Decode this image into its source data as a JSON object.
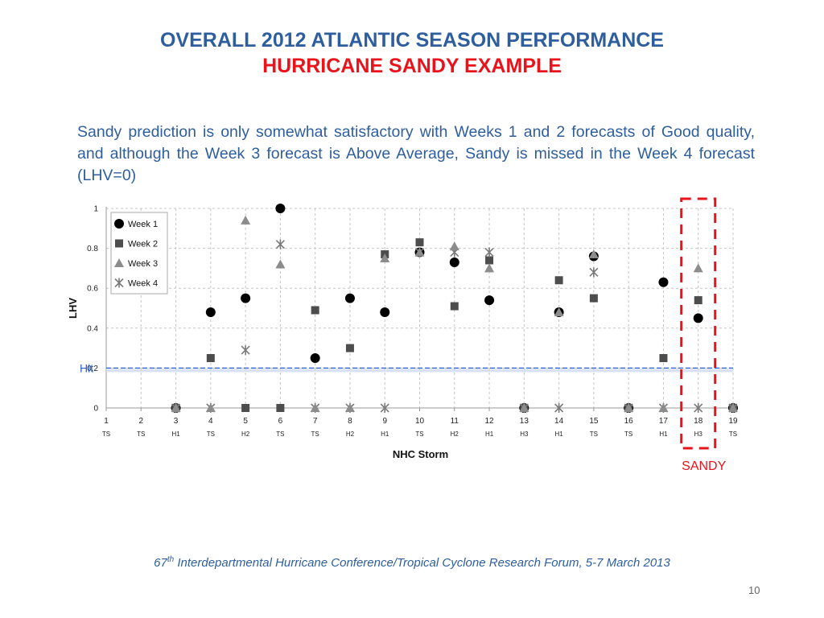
{
  "title": "OVERALL 2012 ATLANTIC SEASON PERFORMANCE",
  "subtitle": "HURRICANE SANDY EXAMPLE",
  "description": "Sandy prediction is only somewhat satisfactory with Weeks 1 and 2 forecasts of Good quality, and although the Week 3 forecast is Above Average, Sandy is missed in the Week 4 forecast (LHV=0)",
  "footer": {
    "ordinal_number": "67",
    "ordinal_suffix": "th",
    "text": " Interdepartmental Hurricane Conference/Tropical Cyclone Research Forum, 5-7 March 2013"
  },
  "page_number": "10",
  "chart_data": {
    "type": "scatter",
    "xlabel": "NHC Storm",
    "ylabel": "LHV",
    "xlim": [
      1,
      19
    ],
    "ylim": [
      0,
      1
    ],
    "y_ticks": [
      "0",
      "0.2",
      "0.4",
      "0.6",
      "0.8",
      "1"
    ],
    "y_tick_values": [
      0,
      0.2,
      0.4,
      0.6,
      0.8,
      1
    ],
    "x_ticks": [
      "1",
      "2",
      "3",
      "4",
      "5",
      "6",
      "7",
      "8",
      "9",
      "10",
      "11",
      "12",
      "13",
      "14",
      "15",
      "16",
      "17",
      "18",
      "19"
    ],
    "storm_categories": [
      "TS",
      "TS",
      "H1",
      "TS",
      "H2",
      "TS",
      "TS",
      "H2",
      "H1",
      "TS",
      "H2",
      "H1",
      "H3",
      "H1",
      "TS",
      "TS",
      "H1",
      "H3",
      "TS"
    ],
    "grid": true,
    "legend_position": "top-left",
    "hit_line": {
      "value": 0.2,
      "label": "Hit",
      "color": "#2b5fd6"
    },
    "highlight": {
      "x": 18,
      "label": "SANDY",
      "color": "#e8131b"
    },
    "series": [
      {
        "name": "Week 1",
        "marker": "circle",
        "color": "#000000",
        "x": [
          3,
          4,
          5,
          6,
          7,
          8,
          9,
          10,
          11,
          12,
          13,
          14,
          15,
          16,
          17,
          18,
          19
        ],
        "y": [
          0,
          0.48,
          0.55,
          1.0,
          0.25,
          0.55,
          0.48,
          0.78,
          0.73,
          0.54,
          0,
          0.48,
          0.76,
          0,
          0.63,
          0.45,
          0
        ]
      },
      {
        "name": "Week 2",
        "marker": "square",
        "color": "#4d4d4d",
        "x": [
          3,
          4,
          5,
          6,
          7,
          8,
          9,
          10,
          11,
          12,
          13,
          14,
          15,
          16,
          17,
          18,
          19
        ],
        "y": [
          0,
          0.25,
          0,
          0,
          0.49,
          0.3,
          0.77,
          0.83,
          0.51,
          0.74,
          0,
          0.64,
          0.55,
          0,
          0.25,
          0.54,
          0
        ]
      },
      {
        "name": "Week 3",
        "marker": "triangle",
        "color": "#8c8c8c",
        "x": [
          3,
          4,
          5,
          6,
          7,
          8,
          9,
          10,
          11,
          12,
          13,
          14,
          15,
          16,
          17,
          18,
          19
        ],
        "y": [
          0,
          0,
          0.94,
          0.72,
          0,
          0,
          0.75,
          0.78,
          0.81,
          0.7,
          0,
          0.48,
          0.77,
          0,
          0,
          0.7,
          0
        ]
      },
      {
        "name": "Week 4",
        "marker": "x",
        "color": "#7a7a7a",
        "x": [
          3,
          4,
          5,
          6,
          7,
          8,
          9,
          10,
          11,
          12,
          13,
          14,
          15,
          16,
          17,
          18,
          19
        ],
        "y": [
          0,
          0,
          0.29,
          0.82,
          0,
          0,
          0,
          0.78,
          0.78,
          0.78,
          0,
          0,
          0.68,
          0,
          0,
          0,
          0
        ]
      }
    ]
  }
}
